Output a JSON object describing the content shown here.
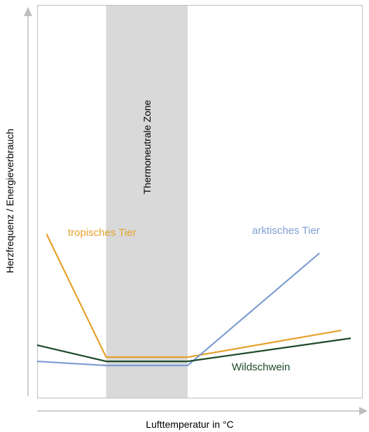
{
  "chart_data": {
    "type": "line",
    "title": "",
    "xlabel": "Lufttemperatur in °C",
    "ylabel": "Herzfrequenz / Energieverbrauch",
    "xlim": [
      0,
      100
    ],
    "ylim": [
      0,
      100
    ],
    "grid": false,
    "zone": {
      "label": "Thermoneutrale Zone",
      "x_start": 22,
      "x_end": 48,
      "color": "#d9d9d9"
    },
    "series": [
      {
        "name": "tropisches Tier",
        "color": "#e5a12b",
        "x": [
          3,
          22,
          48,
          97
        ],
        "y": [
          43.5,
          10.9,
          10.9,
          18.0
        ]
      },
      {
        "name": "arktisches Tier",
        "color": "#7f9fd2",
        "x": [
          0,
          22,
          48,
          90
        ],
        "y": [
          9.8,
          8.7,
          8.7,
          38.4
        ]
      },
      {
        "name": "Wildschwein",
        "color": "#1e4a2b",
        "x": [
          0,
          22,
          48,
          100
        ],
        "y": [
          14.1,
          9.8,
          9.8,
          15.9
        ]
      }
    ]
  }
}
